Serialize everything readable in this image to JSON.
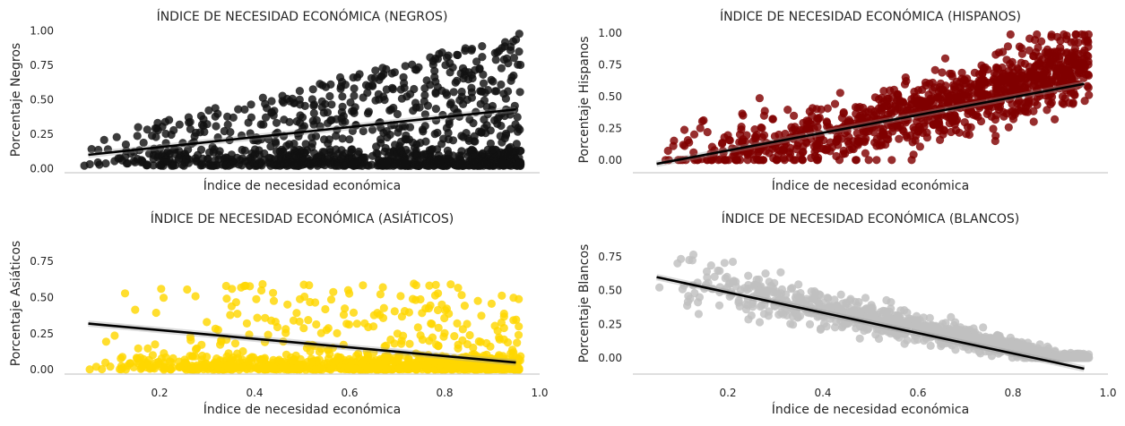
{
  "chart_data": [
    {
      "type": "scatter",
      "title": "ÍNDICE DE NECESIDAD ECONÓMICA (NEGROS)",
      "xlabel": "Índice de necesidad económica",
      "ylabel": "Porcentaje Negros",
      "xlim": [
        0.0,
        1.0
      ],
      "ylim": [
        -0.03,
        1.03
      ],
      "yticks": [
        0.0,
        0.25,
        0.5,
        0.75,
        1.0
      ],
      "ytick_labels": [
        "0.00",
        "0.25",
        "0.50",
        "0.75",
        "1.00"
      ],
      "xticks": [],
      "xtick_labels": [],
      "color": "#111111",
      "regression": {
        "x": [
          0.05,
          0.95
        ],
        "y": [
          0.1,
          0.43
        ]
      },
      "grid": false,
      "seed": 11,
      "n_points": 1100,
      "pattern": "black"
    },
    {
      "type": "scatter",
      "title": "ÍNDICE DE NECESIDAD ECONÓMICA (HISPANOS)",
      "xlabel": "Índice de necesidad económica",
      "ylabel": "Porcentaje Hispanos",
      "xlim": [
        0.0,
        1.0
      ],
      "ylim": [
        -0.1,
        1.05
      ],
      "yticks": [
        0.0,
        0.25,
        0.5,
        0.75,
        1.0
      ],
      "ytick_labels": [
        "0.00",
        "0.25",
        "0.50",
        "0.75",
        "1.00"
      ],
      "xticks": [],
      "xtick_labels": [],
      "color": "#800000",
      "regression": {
        "x": [
          0.05,
          0.95
        ],
        "y": [
          -0.03,
          0.6
        ]
      },
      "grid": false,
      "seed": 23,
      "n_points": 1100,
      "pattern": "hispanic"
    },
    {
      "type": "scatter",
      "title": "ÍNDICE DE NECESIDAD ECONÓMICA (ASIÁTICOS)",
      "xlabel": "Índice de necesidad económica",
      "ylabel": "Porcentaje Asiáticos",
      "xlim": [
        0.0,
        1.0
      ],
      "ylim": [
        -0.03,
        0.95
      ],
      "yticks": [
        0.0,
        0.25,
        0.5,
        0.75
      ],
      "ytick_labels": [
        "0.00",
        "0.25",
        "0.50",
        "0.75"
      ],
      "xticks": [
        0.2,
        0.4,
        0.6,
        0.8,
        1.0
      ],
      "xtick_labels": [
        "0.2",
        "0.4",
        "0.6",
        "0.8",
        "1.0"
      ],
      "color": "#FFD700",
      "regression": {
        "x": [
          0.05,
          0.95
        ],
        "y": [
          0.32,
          0.05
        ]
      },
      "grid": false,
      "seed": 37,
      "n_points": 1100,
      "pattern": "asian"
    },
    {
      "type": "scatter",
      "title": "ÍNDICE DE NECESIDAD ECONÓMICA (BLANCOS)",
      "xlabel": "Índice de necesidad económica",
      "ylabel": "Porcentaje Blancos",
      "xlim": [
        0.0,
        1.0
      ],
      "ylim": [
        -0.12,
        0.93
      ],
      "yticks": [
        0.0,
        0.25,
        0.5,
        0.75
      ],
      "ytick_labels": [
        "0.00",
        "0.25",
        "0.50",
        "0.75"
      ],
      "xticks": [
        0.2,
        0.4,
        0.6,
        0.8,
        1.0
      ],
      "xtick_labels": [
        "0.2",
        "0.4",
        "0.6",
        "0.8",
        "1.0"
      ],
      "color": "#C0C0C0",
      "regression": {
        "x": [
          0.05,
          0.95
        ],
        "y": [
          0.6,
          -0.08
        ]
      },
      "grid": false,
      "seed": 53,
      "n_points": 1100,
      "pattern": "white"
    }
  ]
}
